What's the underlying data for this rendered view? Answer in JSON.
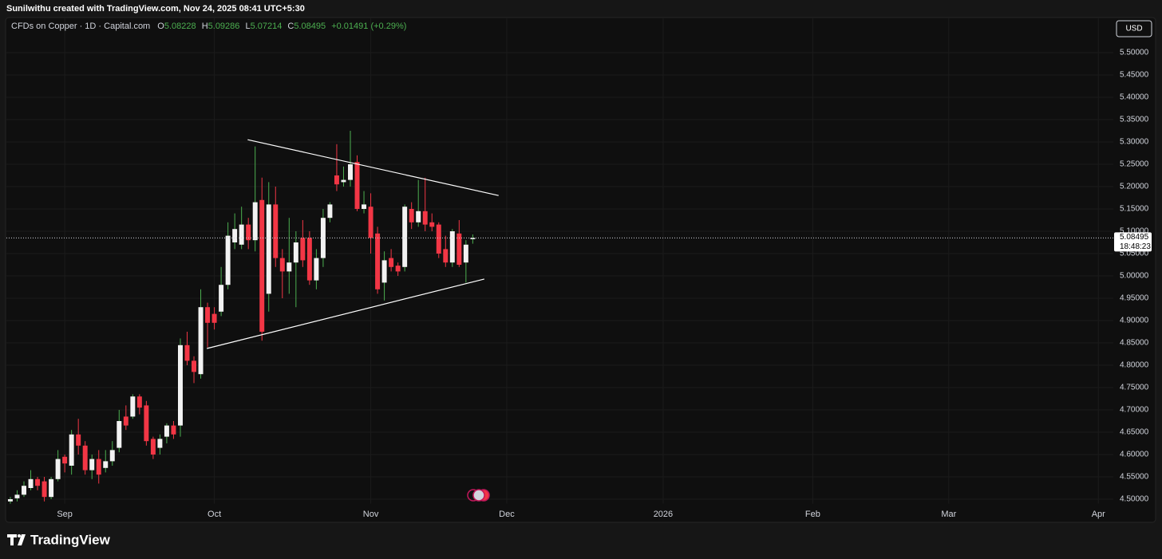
{
  "top_bar": {
    "text": "Sunilwithu created with TradingView.com, Nov 24, 2025 08:41 UTC+5:30"
  },
  "footer": {
    "brand": "TradingView"
  },
  "chart_data": {
    "type": "candlestick",
    "symbol": "CFDs on Copper · 1D · Capital.com",
    "ohlc_prefixes": [
      "O",
      "H",
      "L",
      "C"
    ],
    "change": "+0.01491 (+0.29%)",
    "currency": "USD",
    "countdown": "18:48:23",
    "up_color": "#f2f2f2",
    "up_wick": "#4caf50",
    "down_color": "#f23645",
    "grid": true,
    "x": [
      -8,
      -7,
      -6,
      -5,
      -4,
      -3,
      -2,
      -1,
      0,
      1,
      2,
      3,
      4,
      5,
      6,
      7,
      8,
      9,
      10,
      11,
      12,
      13,
      14,
      15,
      16,
      17,
      18,
      19,
      20,
      21,
      22,
      23,
      24,
      25,
      26,
      27,
      28,
      29,
      30,
      31,
      32,
      33,
      34,
      35,
      36,
      37,
      38,
      39,
      40,
      41,
      42,
      43,
      44,
      45,
      46,
      47,
      48,
      49,
      50,
      51,
      52,
      53,
      54,
      55,
      56,
      57,
      58,
      59,
      60
    ],
    "open": [
      4.495,
      4.502,
      4.51,
      4.525,
      4.545,
      4.54,
      4.505,
      4.545,
      4.595,
      4.575,
      4.645,
      4.62,
      4.565,
      4.59,
      4.57,
      4.585,
      4.615,
      4.685,
      4.685,
      4.73,
      4.71,
      4.635,
      4.615,
      4.64,
      4.665,
      4.665,
      4.845,
      4.81,
      4.78,
      4.93,
      4.915,
      4.92,
      4.98,
      5.075,
      5.07,
      5.115,
      5.08,
      5.17,
      4.96,
      5.16,
      5.04,
      5.01,
      5.03,
      5.085,
      5.085,
      4.99,
      5.04,
      5.13,
      5.225,
      5.21,
      5.215,
      5.255,
      5.15,
      5.155,
      5.095,
      4.985,
      5.04,
      5.023,
      5.02,
      5.15,
      5.12,
      5.145,
      5.12,
      5.115,
      5.06,
      5.03,
      5.095,
      5.03,
      5.08228
    ],
    "high": [
      4.505,
      4.52,
      4.54,
      4.565,
      4.55,
      4.55,
      4.55,
      4.61,
      4.6,
      4.655,
      4.68,
      4.63,
      4.6,
      4.61,
      4.61,
      4.63,
      4.7,
      4.71,
      4.735,
      4.735,
      4.72,
      4.64,
      4.645,
      4.67,
      4.675,
      4.86,
      4.875,
      4.82,
      4.97,
      4.94,
      4.93,
      5.02,
      5.12,
      5.14,
      5.155,
      5.13,
      5.29,
      5.22,
      5.21,
      5.2,
      5.06,
      5.13,
      5.1,
      5.125,
      5.1,
      5.06,
      5.15,
      5.165,
      5.295,
      5.245,
      5.325,
      5.27,
      5.19,
      5.185,
      5.11,
      5.055,
      5.06,
      5.03,
      5.16,
      5.165,
      5.215,
      5.22,
      5.14,
      5.12,
      5.09,
      5.105,
      5.125,
      5.08,
      5.09286
    ],
    "low": [
      4.49,
      4.495,
      4.505,
      4.52,
      4.52,
      4.495,
      4.5,
      4.54,
      4.56,
      4.555,
      4.6,
      4.555,
      4.545,
      4.535,
      4.56,
      4.575,
      4.605,
      4.655,
      4.68,
      4.69,
      4.62,
      4.59,
      4.6,
      4.625,
      4.635,
      4.64,
      4.8,
      4.76,
      4.77,
      4.84,
      4.88,
      4.91,
      4.97,
      5.06,
      5.06,
      5.06,
      5.055,
      4.855,
      4.92,
      5.02,
      4.95,
      4.96,
      4.93,
      5.02,
      4.98,
      4.97,
      5.02,
      5.12,
      5.19,
      5.2,
      5.2,
      5.145,
      5.14,
      5.05,
      4.96,
      4.945,
      5.01,
      5,
      5.01,
      5.105,
      5.11,
      5.1,
      5.1,
      5.04,
      5.02,
      5.02,
      5.02,
      4.985,
      5.07214
    ],
    "close": [
      4.5,
      4.51,
      4.53,
      4.545,
      4.53,
      4.505,
      4.545,
      4.59,
      4.58,
      4.645,
      4.62,
      4.565,
      4.59,
      4.555,
      4.585,
      4.61,
      4.675,
      4.665,
      4.73,
      4.705,
      4.63,
      4.6,
      4.635,
      4.665,
      4.645,
      4.845,
      4.81,
      4.785,
      4.93,
      4.895,
      4.895,
      4.98,
      5.09,
      5.105,
      5.115,
      5.08,
      5.165,
      4.875,
      5.16,
      5.04,
      5.01,
      5.03,
      5.075,
      5.035,
      4.99,
      5.04,
      5.13,
      5.16,
      5.205,
      5.215,
      5.25,
      5.15,
      5.16,
      5.085,
      4.97,
      5.035,
      5.02,
      5.01,
      5.155,
      5.12,
      5.145,
      5.115,
      5.11,
      5.05,
      5.03,
      5.1,
      5.025,
      5.07,
      5.08495
    ],
    "trendlines": [
      {
        "x": [
          26.9,
          63.8
        ],
        "y": [
          5.305,
          5.18
        ]
      },
      {
        "x": [
          20.9,
          61.7
        ],
        "y": [
          4.8375,
          4.993
        ]
      }
    ],
    "xlim": [
      -8.7,
      154.2
    ],
    "xticks": [
      {
        "value": 0,
        "label": "Sep"
      },
      {
        "value": 22,
        "label": "Oct"
      },
      {
        "value": 45,
        "label": "Nov"
      },
      {
        "value": 65,
        "label": "Dec"
      },
      {
        "value": 88,
        "label": "2026"
      },
      {
        "value": 110,
        "label": "Feb"
      },
      {
        "value": 130,
        "label": "Mar"
      },
      {
        "value": 152,
        "label": "Apr"
      }
    ],
    "ylim": [
      4.49,
      5.58
    ],
    "yticks": [
      {
        "value": 4.5,
        "label": "4.50000"
      },
      {
        "value": 4.55,
        "label": "4.55000"
      },
      {
        "value": 4.6,
        "label": "4.60000"
      },
      {
        "value": 4.65,
        "label": "4.65000"
      },
      {
        "value": 4.7,
        "label": "4.70000"
      },
      {
        "value": 4.75,
        "label": "4.75000"
      },
      {
        "value": 4.8,
        "label": "4.80000"
      },
      {
        "value": 4.85,
        "label": "4.85000"
      },
      {
        "value": 4.9,
        "label": "4.90000"
      },
      {
        "value": 4.95,
        "label": "4.95000"
      },
      {
        "value": 5,
        "label": "5.00000"
      },
      {
        "value": 5.05,
        "label": "5.05000"
      },
      {
        "value": 5.1,
        "label": "5.10000"
      },
      {
        "value": 5.15,
        "label": "5.15000"
      },
      {
        "value": 5.2,
        "label": "5.20000"
      },
      {
        "value": 5.25,
        "label": "5.25000"
      },
      {
        "value": 5.3,
        "label": "5.30000"
      },
      {
        "value": 5.35,
        "label": "5.35000"
      },
      {
        "value": 5.4,
        "label": "5.40000"
      },
      {
        "value": 5.45,
        "label": "5.45000"
      },
      {
        "value": 5.5,
        "label": "5.50000"
      }
    ]
  }
}
